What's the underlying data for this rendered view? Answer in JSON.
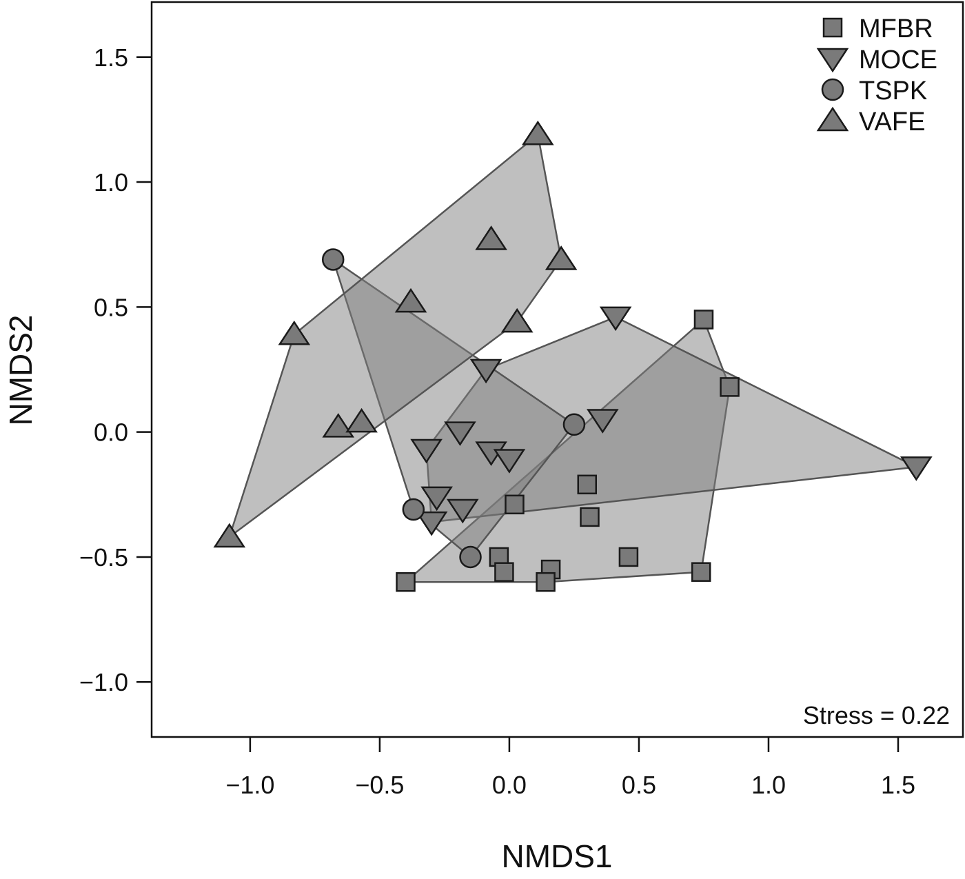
{
  "chart_data": {
    "type": "scatter",
    "title": "",
    "xlabel": "NMDS1",
    "ylabel": "NMDS2",
    "xlim": [
      -1.38,
      1.75
    ],
    "ylim": [
      -1.22,
      1.72
    ],
    "xticks": [
      -1.0,
      -0.5,
      0.0,
      0.5,
      1.0,
      1.5
    ],
    "xtick_labels": [
      "−1.0",
      "−0.5",
      "0.0",
      "0.5",
      "1.0",
      "1.5"
    ],
    "yticks": [
      -1.0,
      -0.5,
      0.0,
      0.5,
      1.0,
      1.5
    ],
    "ytick_labels": [
      "−1.0",
      "−0.5",
      "0.0",
      "0.5",
      "1.0",
      "1.5"
    ],
    "grid": false,
    "legend_position": "top-right",
    "annotation": "Stress = 0.22",
    "colors": {
      "marker_fill": "#7a7a7a",
      "marker_stroke": "#1a1a1a",
      "hull_fill": "#7f7f7f",
      "hull_stroke": "#555555",
      "axis": "#111111"
    },
    "series": [
      {
        "name": "MFBR",
        "marker": "square",
        "points": [
          [
            0.75,
            0.45
          ],
          [
            0.85,
            0.18
          ],
          [
            0.3,
            -0.21
          ],
          [
            0.31,
            -0.34
          ],
          [
            0.02,
            -0.29
          ],
          [
            -0.04,
            -0.5
          ],
          [
            -0.02,
            -0.56
          ],
          [
            0.16,
            -0.55
          ],
          [
            0.14,
            -0.6
          ],
          [
            0.46,
            -0.5
          ],
          [
            0.74,
            -0.56
          ],
          [
            -0.4,
            -0.6
          ]
        ]
      },
      {
        "name": "MOCE",
        "marker": "triangle-down",
        "points": [
          [
            0.41,
            0.46
          ],
          [
            -0.09,
            0.25
          ],
          [
            0.36,
            0.05
          ],
          [
            1.57,
            -0.14
          ],
          [
            -0.19,
            0.0
          ],
          [
            -0.32,
            -0.07
          ],
          [
            -0.07,
            -0.08
          ],
          [
            0.0,
            -0.11
          ],
          [
            -0.28,
            -0.26
          ],
          [
            -0.18,
            -0.31
          ],
          [
            -0.3,
            -0.36
          ]
        ]
      },
      {
        "name": "TSPK",
        "marker": "circle",
        "points": [
          [
            -0.68,
            0.69
          ],
          [
            0.25,
            0.03
          ],
          [
            -0.37,
            -0.31
          ],
          [
            -0.15,
            -0.5
          ]
        ]
      },
      {
        "name": "VAFE",
        "marker": "triangle-up",
        "points": [
          [
            0.11,
            1.19
          ],
          [
            -0.07,
            0.77
          ],
          [
            0.2,
            0.69
          ],
          [
            -0.38,
            0.52
          ],
          [
            0.03,
            0.44
          ],
          [
            -0.83,
            0.39
          ],
          [
            -0.66,
            0.02
          ],
          [
            -0.57,
            0.04
          ],
          [
            -1.08,
            -0.42
          ]
        ]
      }
    ]
  }
}
